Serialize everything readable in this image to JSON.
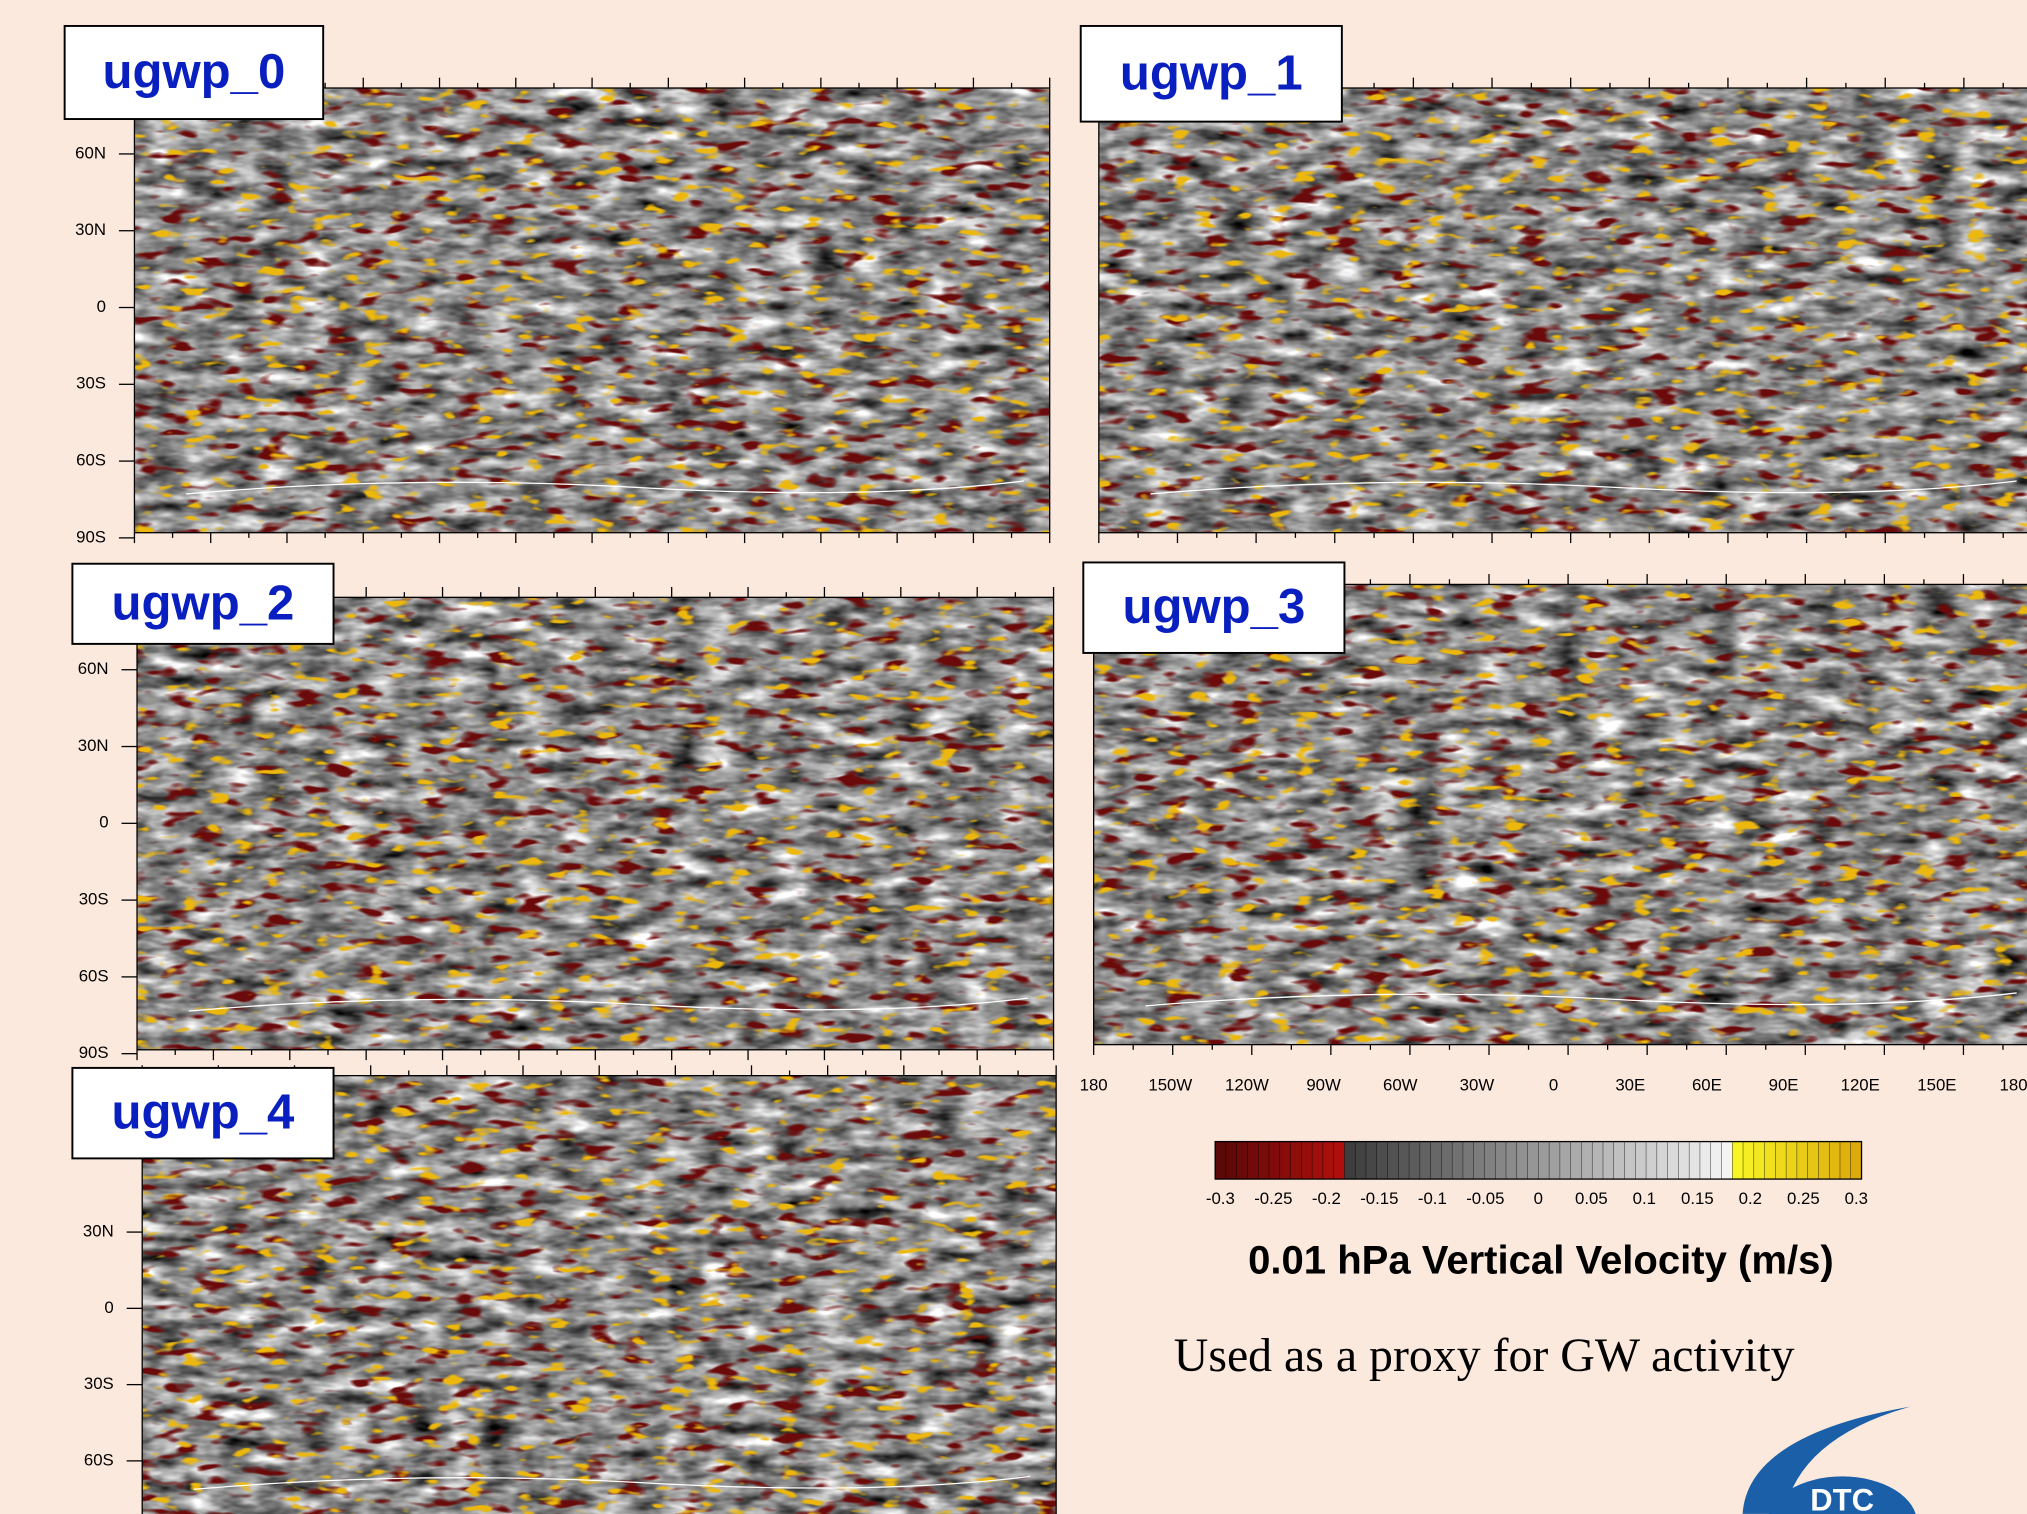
{
  "panels": [
    {
      "label": "ugwp_0",
      "lat_labels": [
        "60N",
        "30N",
        "0",
        "30S",
        "60S",
        "90S"
      ]
    },
    {
      "label": "ugwp_1"
    },
    {
      "label": "ugwp_2",
      "lat_labels": [
        "60N",
        "30N",
        "0",
        "30S",
        "60S",
        "90S"
      ]
    },
    {
      "label": "ugwp_3",
      "lon_labels": [
        "180",
        "150W",
        "120W",
        "90W",
        "60W",
        "30W",
        "0",
        "30E",
        "60E",
        "90E",
        "120E",
        "150E",
        "180"
      ]
    },
    {
      "label": "ugwp_4",
      "lat_labels": [
        "30N",
        "0",
        "30S",
        "60S"
      ]
    }
  ],
  "colorbar": {
    "labels": [
      "-0.3",
      "-0.25",
      "-0.2",
      "-0.15",
      "-0.1",
      "-0.05",
      "0",
      "0.05",
      "0.1",
      "0.15",
      "0.2",
      "0.25",
      "0.3"
    ]
  },
  "title": "0.01 hPa Vertical Velocity (m/s)",
  "caption": "Used as a proxy for GW activity",
  "logo": "DTC"
}
